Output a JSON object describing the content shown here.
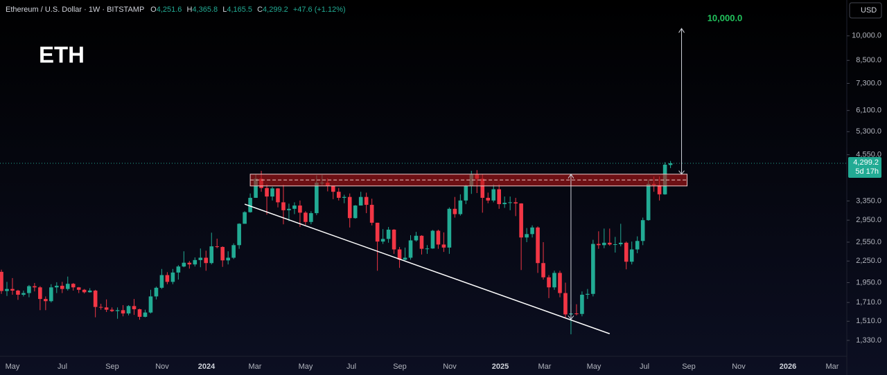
{
  "header": {
    "symbol": "Ethereum / U.S. Dollar · 1W · BITSTAMP",
    "ohlc_letters": [
      "O",
      "H",
      "L",
      "C"
    ],
    "ohlc": [
      "4,251.6",
      "4,365.8",
      "4,165.5",
      "4,299.2"
    ],
    "change": "+47.6 (+1.12%)",
    "currency": "USD"
  },
  "chart_data": {
    "type": "candlestick",
    "title": "ETH",
    "open": [
      2095,
      1845,
      1870,
      1850,
      1800,
      1820,
      1905,
      1890,
      1750,
      1725,
      1890,
      1910,
      1870,
      1935,
      1890,
      1860,
      1830,
      1850,
      1660,
      1655,
      1630,
      1615,
      1625,
      1590,
      1670,
      1635,
      1555,
      1600,
      1780,
      1885,
      2050,
      1960,
      2085,
      2170,
      2225,
      2200,
      2265,
      2300,
      2220,
      2480,
      2470,
      2260,
      2300,
      2500,
      2880,
      3110,
      3420,
      3880,
      3650,
      3450,
      3640,
      3320,
      3150,
      3180,
      3250,
      3100,
      2915,
      3090,
      3780,
      3780,
      3700,
      3560,
      3420,
      3440,
      2990,
      3250,
      3440,
      3265,
      2900,
      2560,
      2605,
      2770,
      2430,
      2270,
      2300,
      2580,
      2660,
      2440,
      2445,
      2750,
      2510,
      2460,
      3180,
      3070,
      3360,
      3700,
      3990,
      3880,
      3420,
      3360,
      3620,
      3280,
      3310,
      3320,
      3295,
      2630,
      2690,
      2810,
      2220,
      2020,
      1890,
      2080,
      1820,
      1580,
      1590,
      1585,
      1800,
      1810,
      2520,
      2500,
      2540,
      2510,
      2515,
      2540,
      2240,
      2430,
      2570,
      2950,
      3750,
      3720,
      3500,
      4251.6
    ],
    "high": [
      2125,
      1960,
      2010,
      1860,
      1850,
      1920,
      1945,
      1905,
      1780,
      1930,
      1955,
      1960,
      2030,
      1945,
      1895,
      1870,
      1880,
      1860,
      1695,
      1745,
      1655,
      1655,
      1680,
      1680,
      1750,
      1640,
      1630,
      1860,
      1900,
      2135,
      2090,
      2135,
      2190,
      2400,
      2250,
      2305,
      2445,
      2410,
      2715,
      2610,
      2480,
      2400,
      2530,
      2890,
      3130,
      3520,
      3990,
      4090,
      3740,
      3680,
      3650,
      3730,
      3290,
      3320,
      3360,
      3130,
      3130,
      3970,
      3980,
      3890,
      3710,
      3650,
      3490,
      3520,
      3260,
      3560,
      3540,
      3400,
      2900,
      2780,
      2820,
      2780,
      2470,
      2460,
      2670,
      2730,
      2670,
      2500,
      2765,
      2770,
      2720,
      3210,
      3440,
      3500,
      3730,
      4090,
      4110,
      4000,
      3540,
      3740,
      3740,
      3450,
      3450,
      3420,
      3300,
      2800,
      2850,
      2830,
      2550,
      2050,
      2110,
      2110,
      1950,
      1690,
      1690,
      1840,
      1870,
      2590,
      2740,
      2790,
      2790,
      2640,
      2880,
      2560,
      2560,
      2650,
      3000,
      3860,
      3940,
      3940,
      4330,
      4365.8
    ],
    "low": [
      1810,
      1785,
      1800,
      1740,
      1780,
      1770,
      1840,
      1625,
      1625,
      1710,
      1820,
      1820,
      1850,
      1850,
      1820,
      1815,
      1825,
      1550,
      1630,
      1605,
      1605,
      1535,
      1560,
      1570,
      1575,
      1525,
      1550,
      1590,
      1745,
      1870,
      1930,
      1930,
      1990,
      2160,
      2140,
      2170,
      2160,
      2110,
      2200,
      2450,
      2165,
      2200,
      2280,
      2440,
      2880,
      3100,
      3420,
      3560,
      3060,
      3360,
      3210,
      2870,
      2930,
      3070,
      2820,
      2860,
      2870,
      3050,
      3720,
      3570,
      3390,
      3360,
      3300,
      2810,
      2980,
      3250,
      3090,
      2850,
      2110,
      2520,
      2540,
      2360,
      2150,
      2260,
      2270,
      2560,
      2350,
      2360,
      2440,
      2440,
      2390,
      2360,
      3000,
      3040,
      3280,
      3510,
      3530,
      3100,
      3300,
      3320,
      3180,
      3200,
      3150,
      3030,
      2120,
      2550,
      2630,
      2080,
      1990,
      1760,
      1860,
      1770,
      1540,
      1385,
      1570,
      1560,
      1750,
      1780,
      2440,
      2450,
      2490,
      2380,
      2480,
      2130,
      2200,
      2370,
      2500,
      2940,
      3560,
      3360,
      3490,
      4165.5
    ],
    "close": [
      1845,
      1870,
      1850,
      1800,
      1820,
      1905,
      1890,
      1750,
      1725,
      1890,
      1910,
      1870,
      1935,
      1890,
      1860,
      1830,
      1850,
      1660,
      1655,
      1630,
      1615,
      1625,
      1590,
      1670,
      1635,
      1555,
      1600,
      1780,
      1885,
      2050,
      1960,
      2085,
      2170,
      2225,
      2200,
      2265,
      2300,
      2220,
      2480,
      2470,
      2260,
      2300,
      2500,
      2880,
      3110,
      3420,
      3880,
      3650,
      3450,
      3640,
      3320,
      3150,
      3180,
      3250,
      3100,
      2915,
      3090,
      3780,
      3780,
      3700,
      3560,
      3420,
      3440,
      2990,
      3250,
      3440,
      3265,
      2900,
      2560,
      2605,
      2770,
      2430,
      2270,
      2300,
      2580,
      2660,
      2440,
      2445,
      2750,
      2510,
      2460,
      3180,
      3070,
      3360,
      3700,
      3990,
      3880,
      3420,
      3360,
      3620,
      3280,
      3310,
      3320,
      3295,
      2630,
      2690,
      2810,
      2220,
      2020,
      1890,
      2080,
      1820,
      1580,
      1590,
      1585,
      1800,
      1810,
      2520,
      2500,
      2540,
      2510,
      2515,
      2540,
      2240,
      2430,
      2570,
      2950,
      3750,
      3720,
      3500,
      4260,
      4299.2
    ],
    "up_color": "#22ab94",
    "down_color": "#f23645",
    "log_scale": true,
    "grid": false,
    "ylim": [
      1197,
      12680
    ],
    "yticks": [
      {
        "value": 1330,
        "label": "1,330.0"
      },
      {
        "value": 1510,
        "label": "1,510.0"
      },
      {
        "value": 1710,
        "label": "1,710.0"
      },
      {
        "value": 1950,
        "label": "1,950.0"
      },
      {
        "value": 2250,
        "label": "2,250.0"
      },
      {
        "value": 2550,
        "label": "2,550.0"
      },
      {
        "value": 2950,
        "label": "2,950.0"
      },
      {
        "value": 3350,
        "label": "3,350.0"
      },
      {
        "value": 4550,
        "label": "4,550.0"
      },
      {
        "value": 5300,
        "label": "5,300.0"
      },
      {
        "value": 6100,
        "label": "6,100.0"
      },
      {
        "value": 7300,
        "label": "7,300.0"
      },
      {
        "value": 8500,
        "label": "8,500.0"
      },
      {
        "value": 10000,
        "label": "10,000.0"
      }
    ],
    "xtick_labels": [
      "May",
      "Jul",
      "Sep",
      "Nov",
      "2024",
      "Mar",
      "May",
      "Jul",
      "Sep",
      "Nov",
      "2025",
      "Mar",
      "May",
      "Jul",
      "Sep",
      "Nov",
      "2026",
      "Mar"
    ],
    "last_price_label": "4,299.2",
    "countdown": "5d 17h",
    "target_label": "10,000.0",
    "drawings": {
      "zone": {
        "start": 45,
        "end": 124,
        "low": 3700,
        "high": 4000,
        "mid": 3850
      },
      "trendline": {
        "start": [
          44,
          3280
        ],
        "end": [
          110,
          1390
        ]
      },
      "arrows": [
        {
          "x": 103,
          "from": 1530,
          "to": 4000
        },
        {
          "x": 123,
          "from": 4000,
          "to": 10500
        }
      ]
    }
  }
}
